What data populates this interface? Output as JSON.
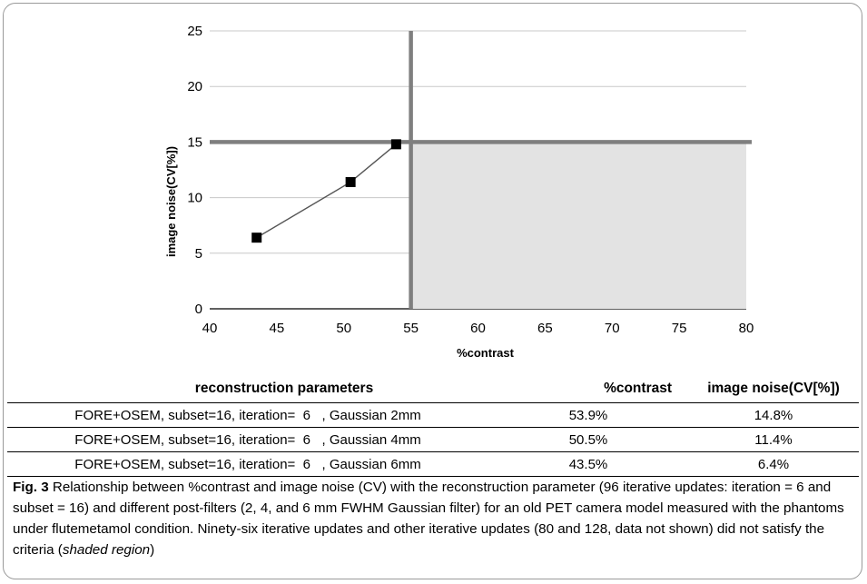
{
  "chart_data": {
    "type": "scatter",
    "title": "",
    "xlabel": "%contrast",
    "ylabel": "image noise(CV[%])",
    "xlim": [
      40,
      80
    ],
    "ylim": [
      0,
      25
    ],
    "x_ticks": [
      "40",
      "45",
      "50",
      "55",
      "60",
      "65",
      "70",
      "75",
      "80"
    ],
    "y_ticks": [
      "0",
      "5",
      "10",
      "15",
      "20",
      "25"
    ],
    "grid": "horizontal",
    "points": [
      {
        "x": 43.5,
        "y": 6.4
      },
      {
        "x": 50.5,
        "y": 11.4
      },
      {
        "x": 53.9,
        "y": 14.8
      }
    ],
    "threshold_x": 55,
    "threshold_y": 15,
    "shaded_region": {
      "x": [
        55,
        80
      ],
      "y": [
        0,
        15
      ]
    },
    "colors": {
      "shade": "#e3e3e3",
      "threshold": "#7f7f7f",
      "line": "#555555",
      "marker": "#000000",
      "grid": "#c8c8c8"
    }
  },
  "table": {
    "headers": [
      "reconstruction parameters",
      "%contrast",
      "image noise(CV[%])"
    ],
    "rows": [
      [
        "FORE+OSEM, subset=16, iteration=  6   , Gaussian 2mm",
        "53.9%",
        "14.8%"
      ],
      [
        "FORE+OSEM, subset=16, iteration=  6   , Gaussian 4mm",
        "50.5%",
        "11.4%"
      ],
      [
        "FORE+OSEM, subset=16, iteration=  6   , Gaussian 6mm",
        "43.5%",
        "6.4%"
      ]
    ]
  },
  "caption": {
    "label": "Fig. 3",
    "text": " Relationship between %contrast and image noise (CV) with the reconstruction parameter (96 iterative updates: iteration = 6 and subset = 16) and different post-filters (2, 4, and 6 mm FWHM Gaussian filter) for an old PET camera model measured with the phantoms under flutemetamol condition. Ninety-six iterative updates and other iterative updates (80 and 128, data not shown) did not satisfy the criteria (",
    "emphasis": "shaded region",
    "end": ")"
  }
}
